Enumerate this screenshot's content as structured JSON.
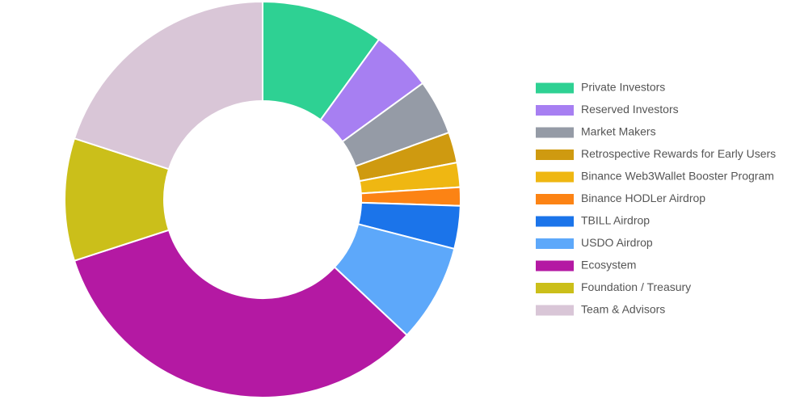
{
  "chart_data": {
    "type": "donut",
    "categories": [
      "Private Investors",
      "Reserved Investors",
      "Market Makers",
      "Retrospective Rewards for Early Users",
      "Binance Web3Wallet Booster Program",
      "Binance HODLer Airdrop",
      "TBILL Airdrop",
      "USDO Airdrop",
      "Ecosystem",
      "Foundation / Treasury",
      "Team & Advisors"
    ],
    "values": [
      10,
      5,
      4.5,
      2.5,
      2,
      1.5,
      3.5,
      8,
      33,
      10,
      20
    ],
    "colors": [
      "#2ed193",
      "#a77ff2",
      "#959ba6",
      "#cf9a10",
      "#efb712",
      "#fc8314",
      "#1b74ea",
      "#5da8fa",
      "#b419a3",
      "#cbbf1a",
      "#d9c6d7"
    ],
    "legend": "right"
  }
}
